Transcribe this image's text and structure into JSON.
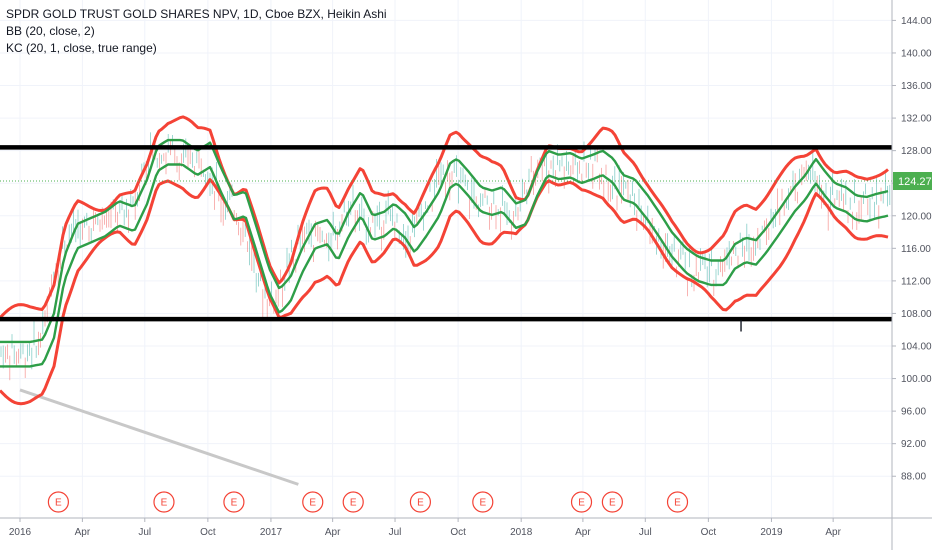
{
  "legend": {
    "title": "SPDR GOLD TRUST GOLD SHARES NPV, 1D, Cboe BZX, Heikin Ashi",
    "bb": "BB (20, close, 2)",
    "kc": "KC (20, 1, close, true range)"
  },
  "colors": {
    "band_red": "#f44336",
    "mid_green": "#2e9e48",
    "candle_up": "#26a69a",
    "candle_down": "#ef5350",
    "level_line": "#000000",
    "trend_line": "#c8c8c8",
    "price_label_bg": "#4caf50",
    "event_circle": "#f44336"
  },
  "chart_data": {
    "type": "line",
    "ylim": [
      86,
      146
    ],
    "x_range": [
      "2016-01-01",
      "2019-06-20"
    ],
    "y_ticks": [
      "144.00",
      "140.00",
      "136.00",
      "132.00",
      "128.00",
      "124.00",
      "120.00",
      "116.00",
      "112.00",
      "108.00",
      "104.00",
      "100.00",
      "96.00",
      "92.00",
      "88.00"
    ],
    "x_ticks": [
      {
        "label": "2016",
        "date": "2016-01-01"
      },
      {
        "label": "Apr",
        "date": "2016-04-01"
      },
      {
        "label": "Jul",
        "date": "2016-07-01"
      },
      {
        "label": "Oct",
        "date": "2016-10-01"
      },
      {
        "label": "2017",
        "date": "2017-01-01"
      },
      {
        "label": "Apr",
        "date": "2017-04-01"
      },
      {
        "label": "Jul",
        "date": "2017-07-01"
      },
      {
        "label": "Oct",
        "date": "2017-10-01"
      },
      {
        "label": "2018",
        "date": "2018-01-01"
      },
      {
        "label": "Apr",
        "date": "2018-04-01"
      },
      {
        "label": "Jul",
        "date": "2018-07-01"
      },
      {
        "label": "Oct",
        "date": "2018-10-01"
      },
      {
        "label": "2019",
        "date": "2019-01-01"
      },
      {
        "label": "Apr",
        "date": "2019-04-01"
      }
    ],
    "last_price": {
      "label": "124.27",
      "value": 124.27
    },
    "horizontal_levels": [
      128.4,
      107.3
    ],
    "trend_line": [
      {
        "date": "2016-01-01",
        "value": 98.6
      },
      {
        "date": "2017-02-10",
        "value": 87.0
      }
    ],
    "annotation_text": "l",
    "annotation": {
      "date": "2018-11-15",
      "value": 105.8
    },
    "events": [
      {
        "label": "E",
        "date": "2016-02-26"
      },
      {
        "label": "E",
        "date": "2016-07-29"
      },
      {
        "label": "E",
        "date": "2016-11-08"
      },
      {
        "label": "E",
        "date": "2017-03-03"
      },
      {
        "label": "E",
        "date": "2017-05-01"
      },
      {
        "label": "E",
        "date": "2017-08-07"
      },
      {
        "label": "E",
        "date": "2017-11-06"
      },
      {
        "label": "E",
        "date": "2018-03-30"
      },
      {
        "label": "E",
        "date": "2018-05-14"
      },
      {
        "label": "E",
        "date": "2018-08-17"
      }
    ],
    "series": [
      {
        "kind": "mid",
        "points": [
          [
            "2016-01-01",
            103.0
          ],
          [
            "2016-01-20",
            103.3
          ],
          [
            "2016-02-05",
            106.5
          ],
          [
            "2016-02-20",
            113.5
          ],
          [
            "2016-03-10",
            117.5
          ],
          [
            "2016-04-01",
            118.3
          ],
          [
            "2016-04-20",
            119.0
          ],
          [
            "2016-05-10",
            120.3
          ],
          [
            "2016-06-01",
            119.6
          ],
          [
            "2016-06-20",
            123.0
          ],
          [
            "2016-07-05",
            127.0
          ],
          [
            "2016-07-20",
            127.8
          ],
          [
            "2016-08-10",
            127.8
          ],
          [
            "2016-09-01",
            126.5
          ],
          [
            "2016-09-20",
            127.5
          ],
          [
            "2016-10-05",
            124.5
          ],
          [
            "2016-10-25",
            121.0
          ],
          [
            "2016-11-10",
            121.5
          ],
          [
            "2016-11-25",
            117.5
          ],
          [
            "2016-12-15",
            112.0
          ],
          [
            "2016-12-30",
            109.5
          ],
          [
            "2017-01-15",
            111.0
          ],
          [
            "2017-02-01",
            114.5
          ],
          [
            "2017-02-20",
            117.5
          ],
          [
            "2017-03-10",
            118.0
          ],
          [
            "2017-03-25",
            116.0
          ],
          [
            "2017-04-10",
            119.0
          ],
          [
            "2017-04-28",
            121.5
          ],
          [
            "2017-05-15",
            118.5
          ],
          [
            "2017-06-01",
            119.0
          ],
          [
            "2017-06-15",
            120.0
          ],
          [
            "2017-07-01",
            118.8
          ],
          [
            "2017-07-15",
            117.0
          ],
          [
            "2017-08-01",
            119.0
          ],
          [
            "2017-08-20",
            121.5
          ],
          [
            "2017-09-05",
            125.0
          ],
          [
            "2017-09-15",
            125.5
          ],
          [
            "2017-10-01",
            124.0
          ],
          [
            "2017-10-20",
            122.0
          ],
          [
            "2017-11-05",
            121.6
          ],
          [
            "2017-11-20",
            122.0
          ],
          [
            "2017-12-10",
            120.0
          ],
          [
            "2017-12-25",
            120.5
          ],
          [
            "2018-01-10",
            124.0
          ],
          [
            "2018-01-25",
            126.5
          ],
          [
            "2018-02-10",
            126.0
          ],
          [
            "2018-02-28",
            126.2
          ],
          [
            "2018-03-15",
            125.5
          ],
          [
            "2018-04-01",
            126.0
          ],
          [
            "2018-04-15",
            126.5
          ],
          [
            "2018-05-01",
            125.5
          ],
          [
            "2018-05-15",
            123.5
          ],
          [
            "2018-06-01",
            123.0
          ],
          [
            "2018-06-20",
            121.0
          ],
          [
            "2018-07-10",
            118.5
          ],
          [
            "2018-07-25",
            116.5
          ],
          [
            "2018-08-15",
            114.5
          ],
          [
            "2018-09-01",
            113.5
          ],
          [
            "2018-09-20",
            113.0
          ],
          [
            "2018-10-10",
            113.0
          ],
          [
            "2018-10-25",
            115.0
          ],
          [
            "2018-11-10",
            115.8
          ],
          [
            "2018-11-25",
            115.5
          ],
          [
            "2018-12-10",
            117.0
          ],
          [
            "2018-12-31",
            119.5
          ],
          [
            "2019-01-20",
            122.0
          ],
          [
            "2019-02-05",
            123.5
          ],
          [
            "2019-02-20",
            125.5
          ],
          [
            "2019-03-05",
            124.0
          ],
          [
            "2019-03-20",
            122.5
          ],
          [
            "2019-04-05",
            122.0
          ],
          [
            "2019-04-20",
            121.0
          ],
          [
            "2019-05-05",
            120.8
          ],
          [
            "2019-05-20",
            121.2
          ],
          [
            "2019-06-05",
            121.5
          ],
          [
            "2019-06-18",
            122.3
          ]
        ]
      }
    ]
  }
}
